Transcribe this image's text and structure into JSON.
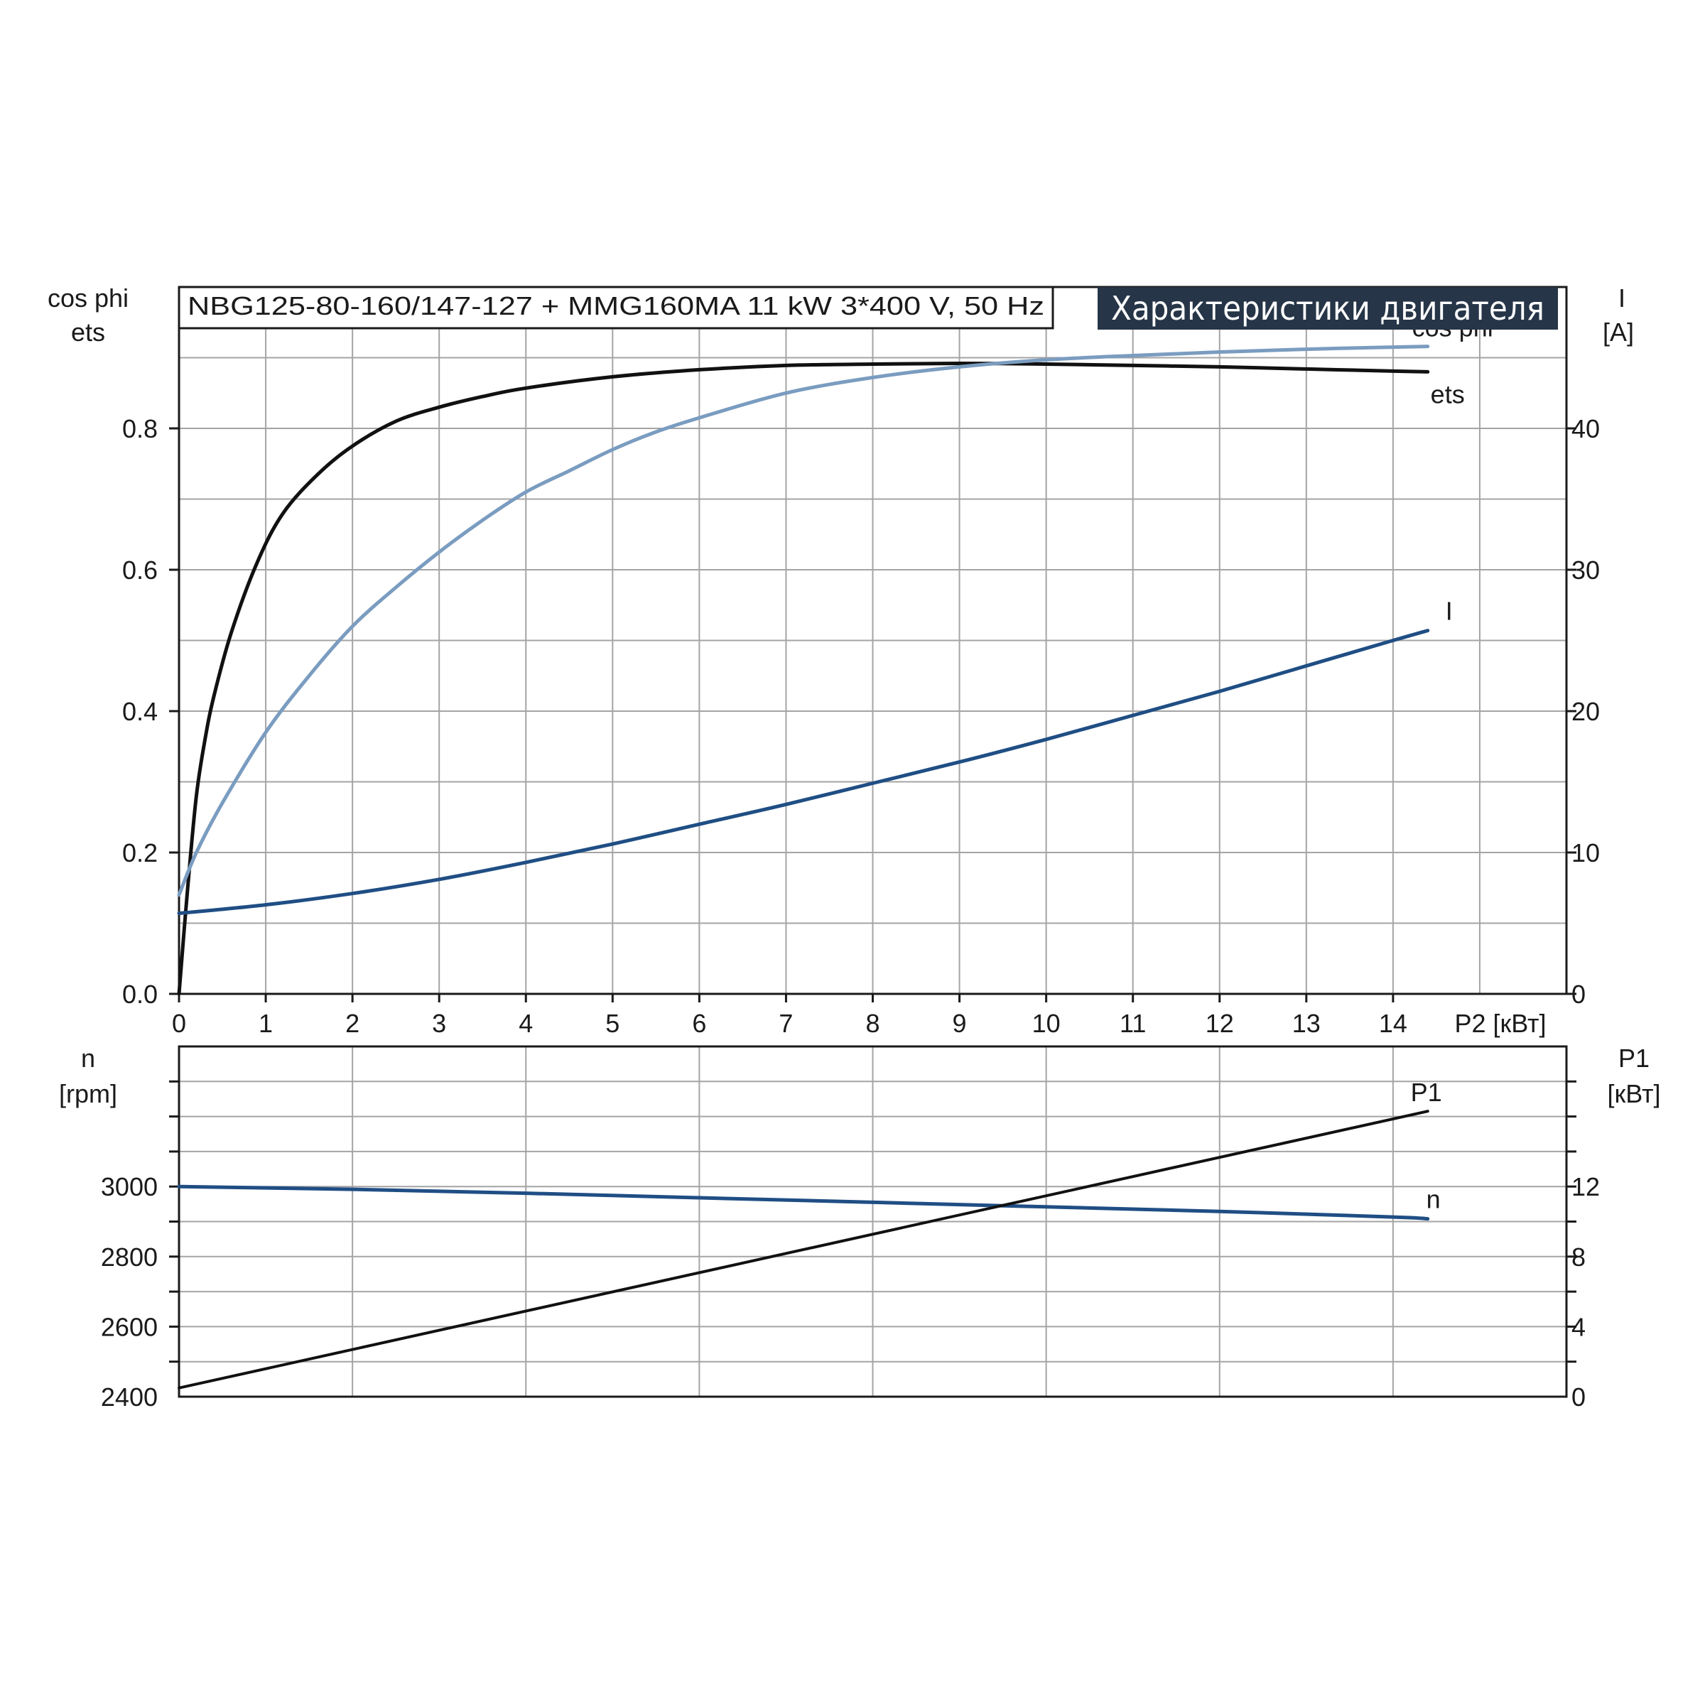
{
  "title": "NBG125-80-160/147-127 + MMG160MA   11 kW   3*400 V, 50 Hz",
  "banner": "Характеристики двигателя",
  "colors": {
    "ets": "#111111",
    "cos_phi": "#7a9cc0",
    "I": "#1f4e84",
    "n": "#1f4e84",
    "P1": "#111111",
    "grid": "#a4a4a4",
    "banner_bg": "#263547"
  },
  "chart_data": [
    {
      "type": "line",
      "panel": "top",
      "xlabel": "P2 [кВт]",
      "xlim": [
        0,
        16
      ],
      "xticks": [
        "0",
        "1",
        "2",
        "3",
        "4",
        "5",
        "6",
        "7",
        "8",
        "9",
        "10",
        "11",
        "12",
        "13",
        "14"
      ],
      "ylabel_left": [
        "cos phi",
        "ets"
      ],
      "ylim_left": [
        0,
        1.0
      ],
      "yticks_left": [
        "0.0",
        "0.2",
        "0.4",
        "0.6",
        "0.8"
      ],
      "ylabel_right": [
        "I",
        "[A]"
      ],
      "ylim_right": [
        0,
        50
      ],
      "yticks_right": [
        "0",
        "10",
        "20",
        "30",
        "40"
      ],
      "grid": true,
      "series": [
        {
          "name": "ets",
          "axis": "left",
          "points": [
            [
              0,
              0.0
            ],
            [
              0.1,
              0.15
            ],
            [
              0.2,
              0.28
            ],
            [
              0.3,
              0.36
            ],
            [
              0.4,
              0.42
            ],
            [
              0.6,
              0.51
            ],
            [
              0.9,
              0.61
            ],
            [
              1.2,
              0.68
            ],
            [
              1.6,
              0.735
            ],
            [
              2.0,
              0.775
            ],
            [
              2.5,
              0.81
            ],
            [
              3.0,
              0.83
            ],
            [
              3.5,
              0.845
            ],
            [
              4.0,
              0.857
            ],
            [
              5.0,
              0.873
            ],
            [
              6.0,
              0.883
            ],
            [
              7.0,
              0.889
            ],
            [
              8.0,
              0.891
            ],
            [
              9.0,
              0.892
            ],
            [
              10.0,
              0.891
            ],
            [
              11.0,
              0.889
            ],
            [
              12.0,
              0.887
            ],
            [
              13.0,
              0.884
            ],
            [
              14.0,
              0.881
            ],
            [
              14.4,
              0.88
            ]
          ]
        },
        {
          "name": "cos phi",
          "axis": "left",
          "points": [
            [
              0,
              0.14
            ],
            [
              0.2,
              0.2
            ],
            [
              0.5,
              0.27
            ],
            [
              1.0,
              0.37
            ],
            [
              1.5,
              0.45
            ],
            [
              2.0,
              0.52
            ],
            [
              2.5,
              0.575
            ],
            [
              3.0,
              0.625
            ],
            [
              3.5,
              0.67
            ],
            [
              4.0,
              0.71
            ],
            [
              4.5,
              0.74
            ],
            [
              5.0,
              0.77
            ],
            [
              5.5,
              0.795
            ],
            [
              6.0,
              0.815
            ],
            [
              7.0,
              0.85
            ],
            [
              8.0,
              0.872
            ],
            [
              9.0,
              0.887
            ],
            [
              10.0,
              0.897
            ],
            [
              11.0,
              0.903
            ],
            [
              12.0,
              0.908
            ],
            [
              13.0,
              0.912
            ],
            [
              14.0,
              0.915
            ],
            [
              14.4,
              0.916
            ]
          ]
        },
        {
          "name": "I",
          "axis": "right",
          "points": [
            [
              0,
              5.7
            ],
            [
              1,
              6.3
            ],
            [
              2,
              7.1
            ],
            [
              3,
              8.1
            ],
            [
              4,
              9.3
            ],
            [
              5,
              10.6
            ],
            [
              6,
              12.0
            ],
            [
              7,
              13.4
            ],
            [
              8,
              14.9
            ],
            [
              9,
              16.4
            ],
            [
              10,
              18.0
            ],
            [
              11,
              19.7
            ],
            [
              12,
              21.4
            ],
            [
              13,
              23.2
            ],
            [
              14,
              25.0
            ],
            [
              14.4,
              25.7
            ]
          ]
        }
      ]
    },
    {
      "type": "line",
      "panel": "bottom",
      "xlim": [
        0,
        16
      ],
      "ylabel_left": [
        "n",
        "[rpm]"
      ],
      "ylim_left": [
        2400,
        3400
      ],
      "yticks_left": [
        "2400",
        "2600",
        "2800",
        "3000"
      ],
      "ylabel_right": [
        "P1",
        "[кВт]"
      ],
      "ylim_right": [
        0,
        20
      ],
      "yticks_right": [
        "0",
        "4",
        "8",
        "12"
      ],
      "grid": true,
      "series": [
        {
          "name": "n",
          "axis": "left",
          "points": [
            [
              0,
              3000
            ],
            [
              2,
              2992
            ],
            [
              4,
              2981
            ],
            [
              6,
              2968
            ],
            [
              8,
              2955
            ],
            [
              10,
              2942
            ],
            [
              12,
              2929
            ],
            [
              14,
              2913
            ],
            [
              14.4,
              2908
            ]
          ]
        },
        {
          "name": "P1",
          "axis": "right",
          "points": [
            [
              0,
              0.5
            ],
            [
              14.4,
              16.3
            ]
          ]
        }
      ]
    }
  ]
}
